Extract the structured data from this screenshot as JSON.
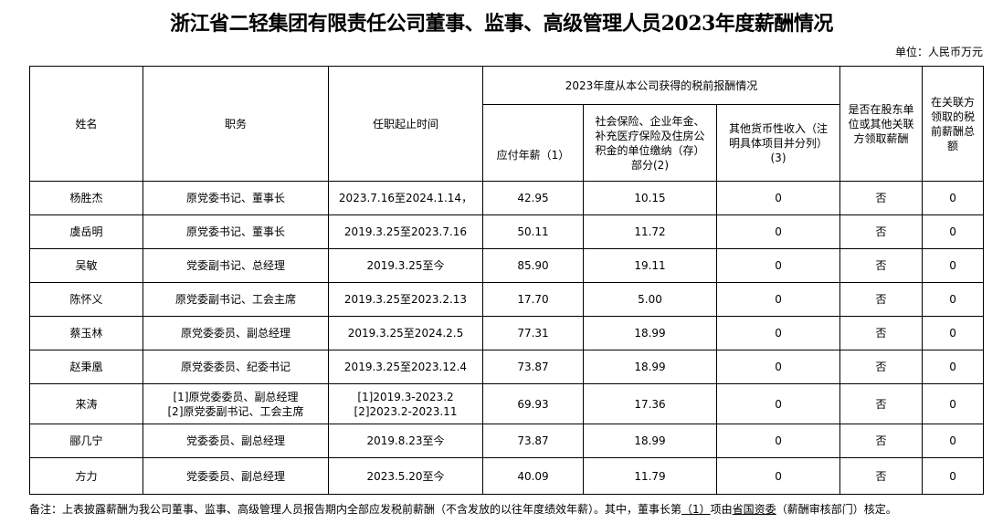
{
  "title": "浙江省二轻集团有限责任公司董事、监事、高级管理人员2023年度薪酬情况",
  "unit": "单位：人民币万元",
  "headers": {
    "name": "姓名",
    "position": "职务",
    "term": "任职起止时间",
    "group": "2023年度从本公司获得的税前报酬情况",
    "salary": "应付年薪（1）",
    "insurance": "社会保险、企业年金、补充医疗保险及住房公积金的单位缴纳（存）部分(2)",
    "other": "其他货币性收入（注明具体项目并分列）(3)",
    "related": "是否在股东单位或其他关联方领取薪酬",
    "related_total": "在关联方领取的税前薪酬总额"
  },
  "rows": [
    {
      "name": "杨胜杰",
      "position": "原党委书记、董事长",
      "term": "2023.7.16至2024.1.14，",
      "salary": "42.95",
      "insurance": "10.15",
      "other": "0",
      "related": "否",
      "related_total": "0"
    },
    {
      "name": "虞岳明",
      "position": "原党委书记、董事长",
      "term": "2019.3.25至2023.7.16",
      "salary": "50.11",
      "insurance": "11.72",
      "other": "0",
      "related": "否",
      "related_total": "0"
    },
    {
      "name": "吴敏",
      "position": "党委副书记、总经理",
      "term": "2019.3.25至今",
      "salary": "85.90",
      "insurance": "19.11",
      "other": "0",
      "related": "否",
      "related_total": "0"
    },
    {
      "name": "陈怀义",
      "position": "原党委副书记、工会主席",
      "term": "2019.3.25至2023.2.13",
      "salary": "17.70",
      "insurance": "5.00",
      "other": "0",
      "related": "否",
      "related_total": "0"
    },
    {
      "name": "蔡玉林",
      "position": "原党委委员、副总经理",
      "term": "2019.3.25至2024.2.5",
      "salary": "77.31",
      "insurance": "18.99",
      "other": "0",
      "related": "否",
      "related_total": "0"
    },
    {
      "name": "赵秉凰",
      "position": "原党委委员、纪委书记",
      "term": "2019.3.25至2023.12.4",
      "salary": "73.87",
      "insurance": "18.99",
      "other": "0",
      "related": "否",
      "related_total": "0"
    },
    {
      "name": "来涛",
      "position": "[1]原党委委员、副总经理",
      "position2": "[2]原党委副书记、工会主席",
      "term": "[1]2019.3-2023.2",
      "term2": "[2]2023.2-2023.11",
      "salary": "69.93",
      "insurance": "17.36",
      "other": "0",
      "related": "否",
      "related_total": "0"
    },
    {
      "name": "郦几宁",
      "position": "党委委员、副总经理",
      "term": "2019.8.23至今",
      "salary": "73.87",
      "insurance": "18.99",
      "other": "0",
      "related": "否",
      "related_total": "0"
    },
    {
      "name": "方力",
      "position": "党委委员、副总经理",
      "term": "2023.5.20至今",
      "salary": "40.09",
      "insurance": "11.79",
      "other": "0",
      "related": "否",
      "related_total": "0"
    }
  ],
  "note": {
    "prefix": "备注：上表披露薪酬为我公司董事、监事、高级管理人员报告期内全部应发税前薪酬（不含发放的以往年度绩效年薪）。其中，董事长第",
    "item": "（1）",
    "mid": "项由",
    "dept": "省国资委",
    "suffix": "（薪酬审核部门）核定。"
  }
}
